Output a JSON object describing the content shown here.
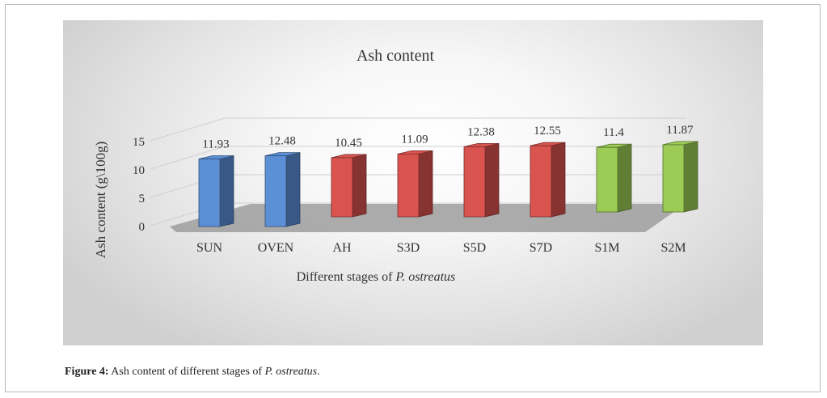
{
  "chart_data": {
    "type": "bar",
    "title": "Ash content",
    "ylabel": "Ash content (g\\100g)",
    "xlabel_prefix": "Different stages of ",
    "xlabel_species": "P. ostreatus",
    "categories": [
      "SUN",
      "OVEN",
      "AH",
      "S3D",
      "S5D",
      "S7D",
      "S1M",
      "S2M"
    ],
    "rows": [
      {
        "category": "SUN",
        "value": 11.93,
        "label": "11.93",
        "color": "#5b8fd6"
      },
      {
        "category": "OVEN",
        "value": 12.48,
        "label": "12.48",
        "color": "#5b8fd6"
      },
      {
        "category": "AH",
        "value": 10.45,
        "label": "10.45",
        "color": "#d9534f"
      },
      {
        "category": "S3D",
        "value": 11.09,
        "label": "11.09",
        "color": "#d9534f"
      },
      {
        "category": "S5D",
        "value": 12.38,
        "label": "12.38",
        "color": "#d9534f"
      },
      {
        "category": "S7D",
        "value": 12.55,
        "label": "12.55",
        "color": "#d9534f"
      },
      {
        "category": "S1M",
        "value": 11.4,
        "label": "11.4",
        "color": "#9ccc55"
      },
      {
        "category": "S2M",
        "value": 11.87,
        "label": "11.87",
        "color": "#9ccc55"
      }
    ],
    "yticks": [
      "0",
      "5",
      "10",
      "15"
    ],
    "ylim": [
      0,
      15
    ],
    "grid": true
  },
  "caption": {
    "lead": "Figure 4:",
    "text": " Ash content of different stages of ",
    "species": "P. ostreatus",
    "end": "."
  }
}
